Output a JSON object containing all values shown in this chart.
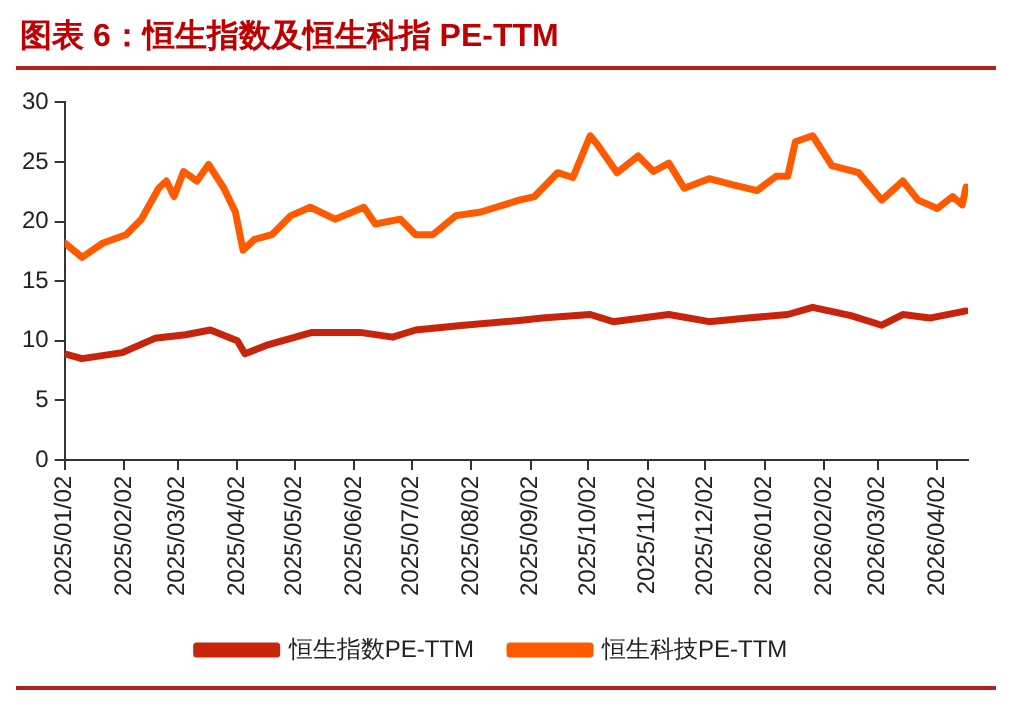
{
  "chart_data": {
    "type": "line",
    "title": "图表 6：恒生指数及恒生科指 PE-TTM",
    "xlim": [
      "2025-01-02",
      "2026-04-18"
    ],
    "xticks": [
      {
        "value": "2025-01-02",
        "label": "2025/01/02"
      },
      {
        "value": "2025-02-02",
        "label": "2025/02/02"
      },
      {
        "value": "2025-03-02",
        "label": "2025/03/02"
      },
      {
        "value": "2025-04-02",
        "label": "2025/04/02"
      },
      {
        "value": "2025-05-02",
        "label": "2025/05/02"
      },
      {
        "value": "2025-06-02",
        "label": "2025/06/02"
      },
      {
        "value": "2025-07-02",
        "label": "2025/07/02"
      },
      {
        "value": "2025-08-02",
        "label": "2025/08/02"
      },
      {
        "value": "2025-09-02",
        "label": "2025/09/02"
      },
      {
        "value": "2025-10-02",
        "label": "2025/10/02"
      },
      {
        "value": "2025-11-02",
        "label": "2025/11/02"
      },
      {
        "value": "2025-12-02",
        "label": "2025/12/02"
      },
      {
        "value": "2026-01-02",
        "label": "2026/01/02"
      },
      {
        "value": "2026-02-02",
        "label": "2026/02/02"
      },
      {
        "value": "2026-03-02",
        "label": "2026/03/02"
      },
      {
        "value": "2026-04-02",
        "label": "2026/04/02"
      }
    ],
    "ylim": [
      0,
      30
    ],
    "yticks": [
      0,
      5,
      10,
      15,
      20,
      25,
      30
    ],
    "grid": false,
    "legend": "bottom",
    "marker": "none",
    "line_style": "solid",
    "series": [
      {
        "name": "恒生指数PE-TTM",
        "color": "#c8240c",
        "x": [
          "2025-01-02",
          "2025-01-11",
          "2025-02-01",
          "2025-02-18",
          "2025-03-06",
          "2025-03-19",
          "2025-04-02",
          "2025-04-06",
          "2025-04-17",
          "2025-05-11",
          "2025-06-05",
          "2025-06-22",
          "2025-07-04",
          "2025-07-29",
          "2025-08-27",
          "2025-09-08",
          "2025-10-03",
          "2025-10-15",
          "2025-11-13",
          "2025-12-04",
          "2025-12-24",
          "2026-01-14",
          "2026-01-27",
          "2026-02-16",
          "2026-03-04",
          "2026-03-15",
          "2026-03-29",
          "2026-04-17"
        ],
        "values": [
          8.9,
          8.5,
          9.0,
          10.2,
          10.5,
          10.9,
          10.0,
          8.9,
          9.6,
          10.7,
          10.7,
          10.3,
          10.9,
          11.3,
          11.7,
          11.9,
          12.2,
          11.6,
          12.2,
          11.6,
          11.9,
          12.2,
          12.8,
          12.1,
          11.3,
          12.2,
          11.9,
          12.5
        ]
      },
      {
        "name": "恒生科技PE-TTM",
        "color": "#ff5a00",
        "x": [
          "2025-01-02",
          "2025-01-11",
          "2025-01-22",
          "2025-02-03",
          "2025-02-11",
          "2025-02-20",
          "2025-02-24",
          "2025-02-28",
          "2025-03-05",
          "2025-03-12",
          "2025-03-18",
          "2025-03-26",
          "2025-04-01",
          "2025-04-05",
          "2025-04-11",
          "2025-04-20",
          "2025-04-30",
          "2025-05-10",
          "2025-05-23",
          "2025-06-07",
          "2025-06-13",
          "2025-06-26",
          "2025-07-04",
          "2025-07-13",
          "2025-07-25",
          "2025-08-07",
          "2025-08-15",
          "2025-08-27",
          "2025-09-04",
          "2025-09-16",
          "2025-09-24",
          "2025-10-03",
          "2025-10-07",
          "2025-10-17",
          "2025-10-28",
          "2025-11-05",
          "2025-11-13",
          "2025-11-21",
          "2025-12-04",
          "2025-12-16",
          "2025-12-29",
          "2026-01-08",
          "2026-01-14",
          "2026-01-18",
          "2026-01-27",
          "2026-02-06",
          "2026-02-20",
          "2026-03-04",
          "2026-03-15",
          "2026-03-23",
          "2026-04-02",
          "2026-04-10",
          "2026-04-15",
          "2026-04-17"
        ],
        "values": [
          18.2,
          17.0,
          18.2,
          18.9,
          20.2,
          22.8,
          23.4,
          22.1,
          24.2,
          23.4,
          24.8,
          22.8,
          20.8,
          17.6,
          18.5,
          18.9,
          20.5,
          21.2,
          20.2,
          21.2,
          19.8,
          20.2,
          18.9,
          18.9,
          20.5,
          20.8,
          21.2,
          21.8,
          22.1,
          24.1,
          23.7,
          27.2,
          26.4,
          24.1,
          25.5,
          24.2,
          24.9,
          22.8,
          23.6,
          23.1,
          22.6,
          23.8,
          23.8,
          26.7,
          27.2,
          24.7,
          24.1,
          21.8,
          23.4,
          21.8,
          21.1,
          22.1,
          21.4,
          22.9
        ]
      }
    ]
  }
}
